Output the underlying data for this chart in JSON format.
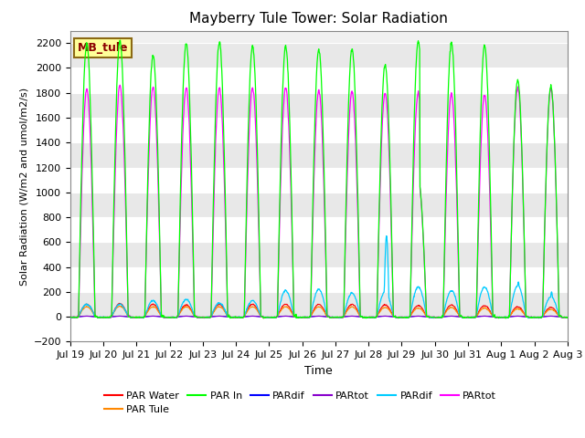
{
  "title": "Mayberry Tule Tower: Solar Radiation",
  "xlabel": "Time",
  "ylabel": "Solar Radiation (W/m2 and umol/m2/s)",
  "ylim": [
    -200,
    2300
  ],
  "xlim": [
    0,
    360
  ],
  "yticks": [
    -200,
    0,
    200,
    400,
    600,
    800,
    1000,
    1200,
    1400,
    1600,
    1800,
    2000,
    2200
  ],
  "bg_color": "#ffffff",
  "plot_bg_color": "#f0f0f0",
  "annotation_text": "MB_tule",
  "annotation_bg": "#ffff99",
  "annotation_edge": "#8B6914",
  "xtick_labels": [
    "Jul 19",
    "Jul 20",
    "Jul 21",
    "Jul 22",
    "Jul 23",
    "Jul 24",
    "Jul 25",
    "Jul 26",
    "Jul 27",
    "Jul 28",
    "Jul 29",
    "Jul 30",
    "Jul 31",
    "Aug 1",
    "Aug 2",
    "Aug 3"
  ],
  "xtick_positions": [
    0,
    24,
    48,
    72,
    96,
    120,
    144,
    168,
    192,
    216,
    240,
    264,
    288,
    312,
    336,
    360
  ]
}
